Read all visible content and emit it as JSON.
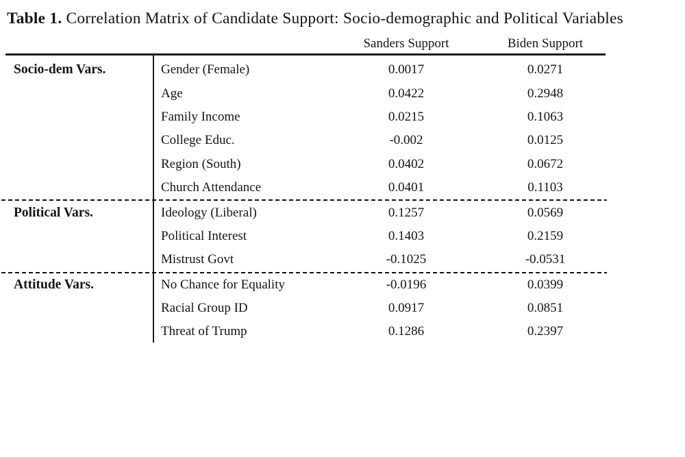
{
  "title": {
    "label": "Table 1.",
    "text": "Correlation Matrix of Candidate Support: Socio-demographic and Political Variables"
  },
  "columns": [
    "Sanders Support",
    "Biden Support"
  ],
  "table": {
    "sections": [
      {
        "group": "Socio-dem Vars.",
        "rows": [
          {
            "variable": "Gender (Female)",
            "sanders": "0.0017",
            "biden": "0.0271"
          },
          {
            "variable": "Age",
            "sanders": "0.0422",
            "biden": "0.2948"
          },
          {
            "variable": "Family Income",
            "sanders": "0.0215",
            "biden": "0.1063"
          },
          {
            "variable": "College Educ.",
            "sanders": "-0.002",
            "biden": "0.0125"
          },
          {
            "variable": "Region (South)",
            "sanders": "0.0402",
            "biden": "0.0672"
          },
          {
            "variable": "Church Attendance",
            "sanders": "0.0401",
            "biden": "0.1103"
          }
        ]
      },
      {
        "group": "Political Vars.",
        "rows": [
          {
            "variable": "Ideology (Liberal)",
            "sanders": "0.1257",
            "biden": "0.0569"
          },
          {
            "variable": "Political Interest",
            "sanders": "0.1403",
            "biden": "0.2159"
          },
          {
            "variable": "Mistrust Govt",
            "sanders": "-0.1025",
            "biden": "-0.0531"
          }
        ]
      },
      {
        "group": "Attitude Vars.",
        "rows": [
          {
            "variable": "No Chance for Equality",
            "sanders": "-0.0196",
            "biden": "0.0399"
          },
          {
            "variable": "Racial Group ID",
            "sanders": "0.0917",
            "biden": "0.0851"
          },
          {
            "variable": "Threat of Trump",
            "sanders": "0.1286",
            "biden": "0.2397"
          }
        ]
      }
    ]
  },
  "colors": {
    "text": "#141414",
    "rule": "#1a1a1a",
    "background": "#ffffff"
  }
}
